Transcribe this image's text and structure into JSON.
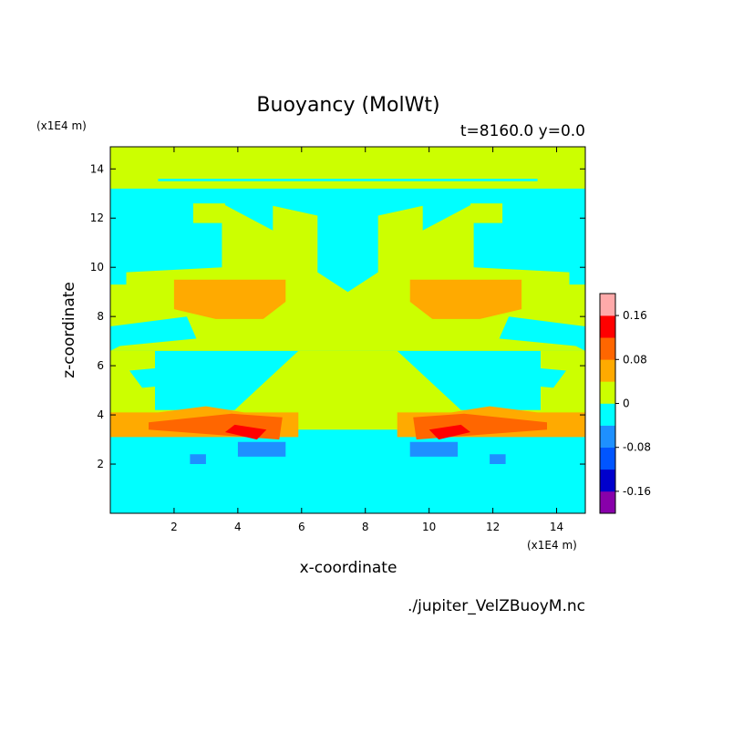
{
  "chart_data": {
    "type": "heatmap",
    "title": "Buoyancy (MolWt)",
    "subtitle": "t=8160.0 y=0.0",
    "xlabel": "x-coordinate",
    "ylabel": "z-coordinate",
    "x_unit": "(x1E4 m)",
    "y_unit": "(x1E4 m)",
    "source_file": "./jupiter_VelZBuoyM.nc",
    "xlim": [
      0,
      14.9
    ],
    "ylim": [
      0,
      14.9
    ],
    "x_ticks": [
      2,
      4,
      6,
      8,
      10,
      12,
      14
    ],
    "y_ticks": [
      2,
      4,
      6,
      8,
      10,
      12,
      14
    ],
    "colorbar": {
      "levels": [
        -0.2,
        -0.16,
        -0.12,
        -0.08,
        -0.04,
        0,
        0.04,
        0.08,
        0.12,
        0.16,
        0.2
      ],
      "colors": [
        "#8800aa",
        "#0000cc",
        "#0055ff",
        "#1e90ff",
        "#00ffff",
        "#ccff00",
        "#ffaa00",
        "#ff6600",
        "#ff0000",
        "#ffaaaa"
      ],
      "tick_labels": [
        "0.16",
        "0.08",
        "0",
        "-0.08",
        "-0.16"
      ],
      "tick_values": [
        0.16,
        0.08,
        0,
        -0.08,
        -0.16
      ]
    },
    "background_value": -0.02,
    "regions": [
      {
        "level": 0.02,
        "polygon": [
          [
            0,
            13.2
          ],
          [
            14.9,
            13.2
          ],
          [
            14.9,
            14.9
          ],
          [
            0,
            14.9
          ]
        ]
      },
      {
        "level": -0.02,
        "polygon": [
          [
            1.5,
            13.5
          ],
          [
            13.4,
            13.5
          ],
          [
            13.4,
            13.6
          ],
          [
            1.5,
            13.6
          ]
        ]
      },
      {
        "level": 0.02,
        "polygon": [
          [
            0,
            3.4
          ],
          [
            14.9,
            3.4
          ],
          [
            14.9,
            6.6
          ],
          [
            13.5,
            6.6
          ],
          [
            13.5,
            4.2
          ],
          [
            11,
            4.2
          ],
          [
            9,
            6.6
          ],
          [
            5.9,
            6.6
          ],
          [
            3.9,
            4.2
          ],
          [
            1.4,
            4.2
          ],
          [
            1.4,
            6.6
          ],
          [
            0,
            6.6
          ]
        ]
      },
      {
        "level": 0.02,
        "polygon": [
          [
            0,
            9.3
          ],
          [
            0.5,
            9.3
          ],
          [
            0.5,
            9.8
          ],
          [
            3.5,
            10
          ],
          [
            3.5,
            12.6
          ],
          [
            5.1,
            11.5
          ],
          [
            5.1,
            12.5
          ],
          [
            6.5,
            12.1
          ],
          [
            6.5,
            9.8
          ],
          [
            7.45,
            9
          ],
          [
            8.4,
            9.8
          ],
          [
            8.4,
            12.1
          ],
          [
            9.8,
            12.5
          ],
          [
            9.8,
            11.5
          ],
          [
            11.4,
            12.6
          ],
          [
            11.4,
            10
          ],
          [
            14.4,
            9.8
          ],
          [
            14.4,
            9.3
          ],
          [
            14.9,
            9.3
          ],
          [
            14.9,
            6.6
          ],
          [
            0,
            6.6
          ]
        ]
      },
      {
        "level": 0.02,
        "polygon": [
          [
            5.5,
            4.5
          ],
          [
            9.4,
            4.5
          ],
          [
            9.4,
            5.2
          ],
          [
            5.5,
            5.2
          ]
        ]
      },
      {
        "level": 0.02,
        "polygon": [
          [
            2.6,
            11.8
          ],
          [
            3.6,
            11.8
          ],
          [
            3.6,
            12.6
          ],
          [
            2.6,
            12.6
          ]
        ]
      },
      {
        "level": 0.02,
        "polygon": [
          [
            11.3,
            11.8
          ],
          [
            12.3,
            11.8
          ],
          [
            12.3,
            12.6
          ],
          [
            11.3,
            12.6
          ]
        ]
      },
      {
        "level": -0.02,
        "polygon": [
          [
            0,
            7.6
          ],
          [
            2.4,
            8
          ],
          [
            2.7,
            7.1
          ],
          [
            0.3,
            6.8
          ],
          [
            0,
            6.6
          ]
        ]
      },
      {
        "level": -0.02,
        "polygon": [
          [
            14.9,
            7.6
          ],
          [
            12.5,
            8
          ],
          [
            12.2,
            7.1
          ],
          [
            14.6,
            6.8
          ],
          [
            14.9,
            6.6
          ]
        ]
      },
      {
        "level": -0.02,
        "polygon": [
          [
            0.6,
            5.8
          ],
          [
            3.2,
            6.1
          ],
          [
            3.4,
            5.4
          ],
          [
            1,
            5.1
          ]
        ]
      },
      {
        "level": -0.02,
        "polygon": [
          [
            14.3,
            5.8
          ],
          [
            11.7,
            6.1
          ],
          [
            11.5,
            5.4
          ],
          [
            13.9,
            5.1
          ]
        ]
      },
      {
        "level": -0.02,
        "polygon": [
          [
            6.7,
            12.2
          ],
          [
            8.2,
            12.2
          ],
          [
            8.2,
            13
          ],
          [
            6.7,
            13
          ]
        ]
      },
      {
        "level": 0.06,
        "polygon": [
          [
            2,
            9.5
          ],
          [
            5.5,
            9.5
          ],
          [
            5.5,
            8.6
          ],
          [
            4.8,
            7.9
          ],
          [
            3.3,
            7.9
          ],
          [
            2,
            8.3
          ]
        ]
      },
      {
        "level": 0.06,
        "polygon": [
          [
            12.9,
            9.5
          ],
          [
            9.4,
            9.5
          ],
          [
            9.4,
            8.6
          ],
          [
            10.1,
            7.9
          ],
          [
            11.6,
            7.9
          ],
          [
            12.9,
            8.3
          ]
        ]
      },
      {
        "level": 0.06,
        "polygon": [
          [
            0,
            3.1
          ],
          [
            5.9,
            3.1
          ],
          [
            5.9,
            4.1
          ],
          [
            4.2,
            4.1
          ],
          [
            3,
            4.35
          ],
          [
            1.5,
            4.1
          ],
          [
            0,
            4.1
          ]
        ]
      },
      {
        "level": 0.06,
        "polygon": [
          [
            14.9,
            3.1
          ],
          [
            9,
            3.1
          ],
          [
            9,
            4.1
          ],
          [
            10.7,
            4.1
          ],
          [
            11.9,
            4.35
          ],
          [
            13.4,
            4.1
          ],
          [
            14.9,
            4.1
          ]
        ]
      },
      {
        "level": 0.1,
        "polygon": [
          [
            1.2,
            3.4
          ],
          [
            5.3,
            3
          ],
          [
            5.4,
            3.9
          ],
          [
            3.8,
            4.05
          ],
          [
            1.2,
            3.7
          ]
        ]
      },
      {
        "level": 0.1,
        "polygon": [
          [
            13.7,
            3.4
          ],
          [
            9.6,
            3
          ],
          [
            9.5,
            3.9
          ],
          [
            11.1,
            4.05
          ],
          [
            13.7,
            3.7
          ]
        ]
      },
      {
        "level": 0.14,
        "polygon": [
          [
            3.6,
            3.3
          ],
          [
            4.6,
            3
          ],
          [
            4.9,
            3.4
          ],
          [
            3.9,
            3.6
          ]
        ]
      },
      {
        "level": 0.14,
        "polygon": [
          [
            11.3,
            3.3
          ],
          [
            10.3,
            3
          ],
          [
            10,
            3.4
          ],
          [
            11,
            3.6
          ]
        ]
      },
      {
        "level": -0.06,
        "polygon": [
          [
            4,
            2.3
          ],
          [
            5.5,
            2.3
          ],
          [
            5.5,
            2.9
          ],
          [
            4,
            2.9
          ]
        ]
      },
      {
        "level": -0.06,
        "polygon": [
          [
            9.4,
            2.3
          ],
          [
            10.9,
            2.3
          ],
          [
            10.9,
            2.9
          ],
          [
            9.4,
            2.9
          ]
        ]
      },
      {
        "level": -0.06,
        "polygon": [
          [
            2.5,
            2
          ],
          [
            3,
            2
          ],
          [
            3,
            2.4
          ],
          [
            2.5,
            2.4
          ]
        ]
      },
      {
        "level": -0.06,
        "polygon": [
          [
            11.9,
            2
          ],
          [
            12.4,
            2
          ],
          [
            12.4,
            2.4
          ],
          [
            11.9,
            2.4
          ]
        ]
      }
    ]
  }
}
